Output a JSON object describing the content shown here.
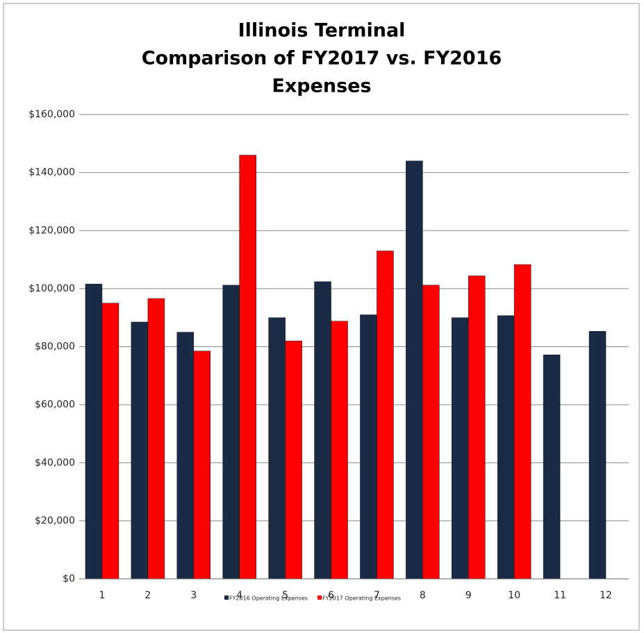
{
  "chart_data": {
    "type": "bar",
    "title": [
      "Illinois Terminal",
      "Comparison of FY2017 vs. FY2016",
      "Expenses"
    ],
    "categories": [
      "1",
      "2",
      "3",
      "4",
      "5",
      "6",
      "7",
      "8",
      "9",
      "10",
      "11",
      "12"
    ],
    "series": [
      {
        "name": "FY2016 Operating Expenses",
        "color": "#1b2a45",
        "values": [
          101600,
          88500,
          85000,
          101200,
          90000,
          102400,
          91000,
          144000,
          90000,
          90700,
          77200,
          85300
        ]
      },
      {
        "name": "FY2017 Operating Expenses",
        "color": "#ff0000",
        "values": [
          95000,
          96600,
          78500,
          146000,
          82000,
          88800,
          113000,
          101200,
          104400,
          108300,
          null,
          null
        ]
      }
    ],
    "ylim": [
      0,
      160000
    ],
    "yticks": [
      {
        "value": 0,
        "label": "$0"
      },
      {
        "value": 20000,
        "label": "$20,000"
      },
      {
        "value": 40000,
        "label": "$40,000"
      },
      {
        "value": 60000,
        "label": "$60,000"
      },
      {
        "value": 80000,
        "label": "$80,000"
      },
      {
        "value": 100000,
        "label": "$100,000"
      },
      {
        "value": 120000,
        "label": "$120,000"
      },
      {
        "value": 140000,
        "label": "$140,000"
      },
      {
        "value": 160000,
        "label": "$160,000"
      }
    ],
    "grid": true,
    "legend": "bottom"
  }
}
